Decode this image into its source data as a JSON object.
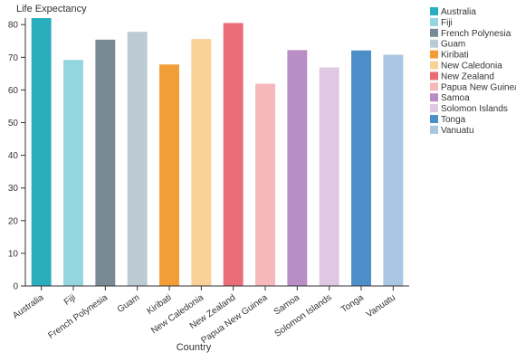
{
  "chart_data": {
    "type": "bar",
    "categories": [
      "Australia",
      "Fiji",
      "French Polynesia",
      "Guam",
      "Kiribati",
      "New Caledonia",
      "New Zealand",
      "Papua New Guinea",
      "Samoa",
      "Solomon Islands",
      "Tonga",
      "Vanuatu"
    ],
    "values": [
      82,
      69.2,
      75.4,
      77.8,
      67.8,
      75.6,
      80.5,
      61.9,
      72.2,
      66.9,
      72.1,
      70.8
    ],
    "colors": [
      "#2aadbc",
      "#94d6df",
      "#788b95",
      "#bccad3",
      "#f29d38",
      "#f9d199",
      "#ea6c76",
      "#f6b8bb",
      "#b98dc5",
      "#dfc8e1",
      "#4c8ec8",
      "#a9c7e2"
    ],
    "title": "",
    "xlabel": "Country",
    "ylabel": "Life Expectancy",
    "ylim": [
      0,
      82
    ],
    "yticks": [
      0,
      10,
      20,
      30,
      40,
      50,
      60,
      70,
      80
    ],
    "grid": false,
    "legend_position": "right"
  }
}
